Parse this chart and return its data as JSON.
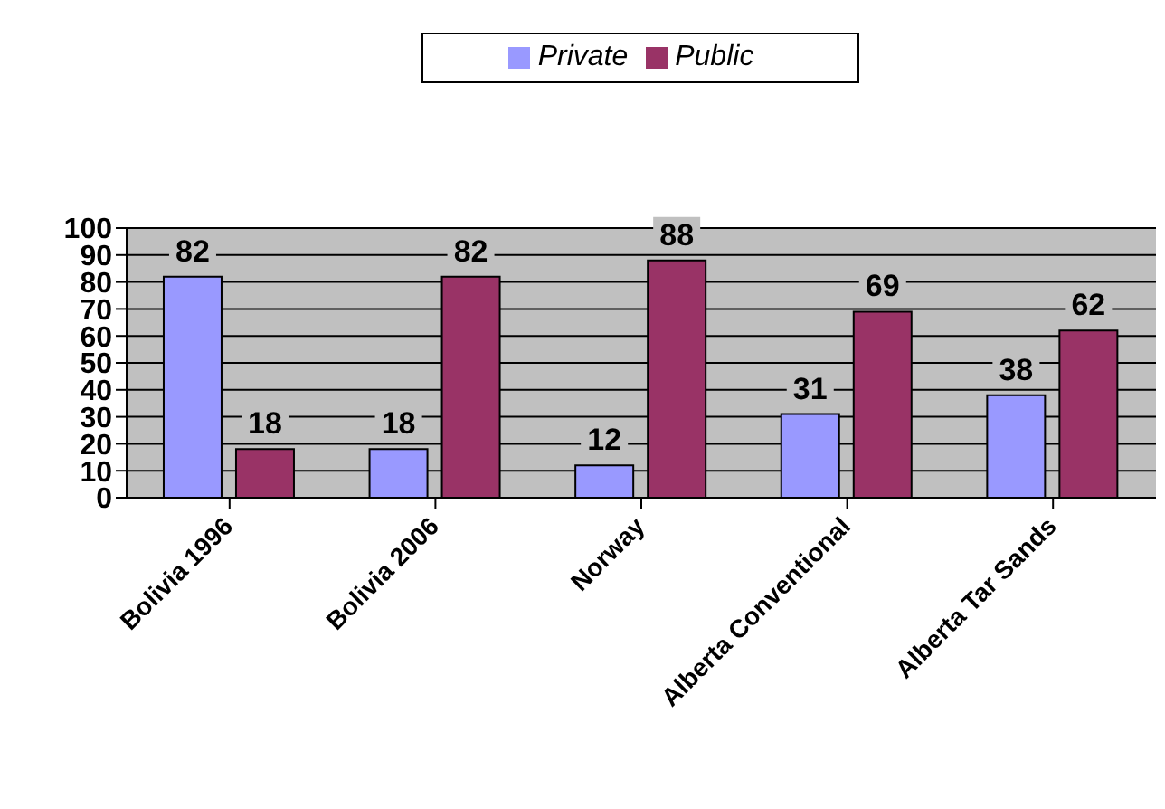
{
  "chart_data": {
    "type": "bar",
    "categories": [
      "Bolivia 1996",
      "Bolivia 2006",
      "Norway",
      "Alberta Conventional",
      "Alberta Tar Sands"
    ],
    "series": [
      {
        "name": "Private",
        "color": "#9999ff",
        "values": [
          82,
          18,
          12,
          31,
          38
        ]
      },
      {
        "name": "Public",
        "color": "#993366",
        "values": [
          18,
          82,
          88,
          69,
          62
        ]
      }
    ],
    "ylim": [
      0,
      100
    ],
    "yticks": [
      0,
      10,
      20,
      30,
      40,
      50,
      60,
      70,
      80,
      90,
      100
    ],
    "grid": "y",
    "legend": "top",
    "data_labels": true
  }
}
